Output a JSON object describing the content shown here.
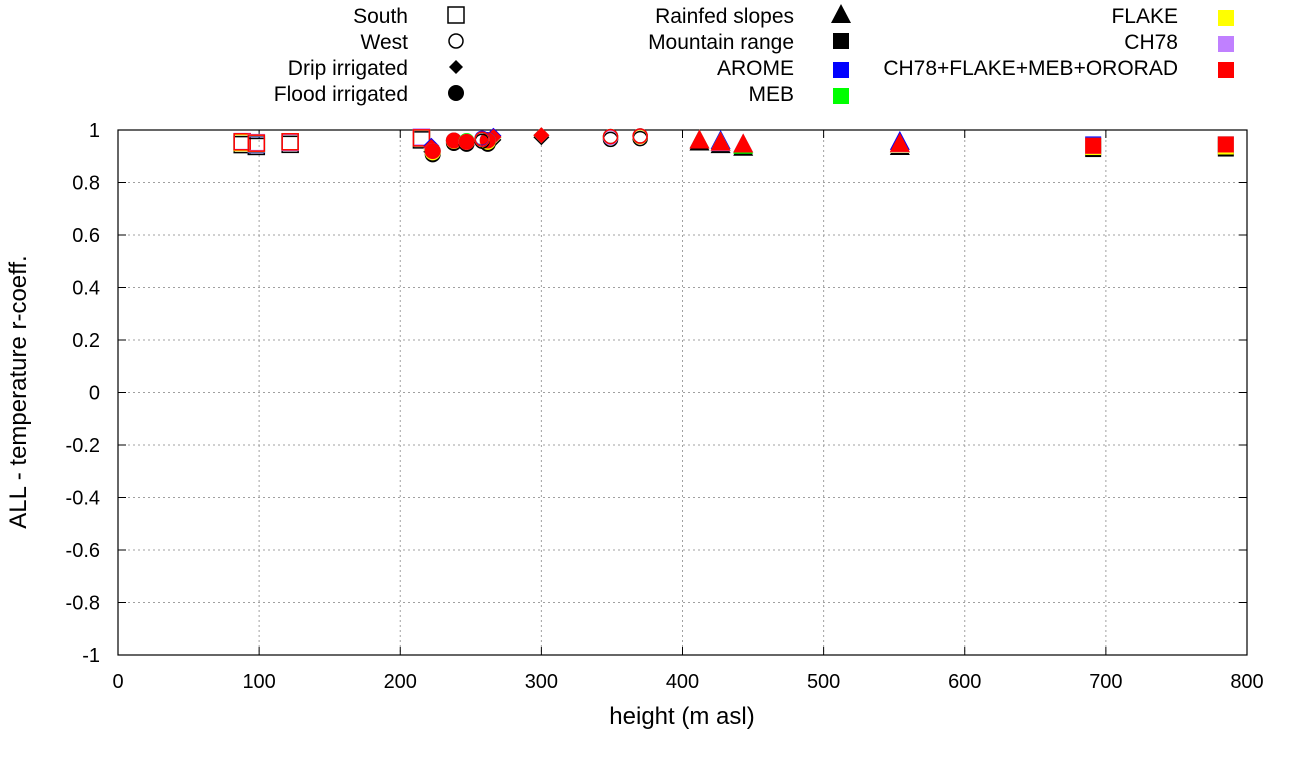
{
  "chart_data": {
    "type": "scatter",
    "xlabel": "height (m asl)",
    "ylabel": "ALL - temperature r-coeff.",
    "xlim": [
      0,
      800
    ],
    "ylim": [
      -1,
      1
    ],
    "xticks": [
      "0",
      "100",
      "200",
      "300",
      "400",
      "500",
      "600",
      "700",
      "800"
    ],
    "yticks": [
      "1",
      "0.8",
      "0.6",
      "0.4",
      "0.2",
      "0",
      "-0.2",
      "-0.4",
      "-0.6",
      "-0.8",
      "-1"
    ],
    "grid": true,
    "legend_placement": "top",
    "site_types": [
      {
        "name": "South",
        "shape": "open-square"
      },
      {
        "name": "West",
        "shape": "open-circle"
      },
      {
        "name": "Drip irrigated",
        "shape": "diamond"
      },
      {
        "name": "Flood irrigated",
        "shape": "circle"
      },
      {
        "name": "Rainfed slopes",
        "shape": "triangle"
      },
      {
        "name": "Mountain range",
        "shape": "square"
      }
    ],
    "models": [
      {
        "name": "AROME",
        "color": "#0000ff"
      },
      {
        "name": "MEB",
        "color": "#00ff00"
      },
      {
        "name": "FLAKE",
        "color": "#ffff00"
      },
      {
        "name": "CH78",
        "color": "#c080ff"
      },
      {
        "name": "CH78+FLAKE+MEB+ORORAD",
        "color": "#ff0000"
      }
    ],
    "points": [
      {
        "type": "South",
        "x": 88,
        "r": [
          0.955,
          0.953,
          0.952,
          0.956,
          0.955
        ]
      },
      {
        "type": "South",
        "x": 98,
        "r": [
          0.945,
          0.95,
          0.948,
          0.952,
          0.95
        ]
      },
      {
        "type": "South",
        "x": 122,
        "r": [
          0.955,
          0.955,
          0.955,
          0.953,
          0.955
        ]
      },
      {
        "type": "South",
        "x": 215,
        "r": [
          0.97,
          0.97,
          0.97,
          0.973,
          0.97
        ]
      },
      {
        "type": "Drip irrigated",
        "x": 222,
        "r": [
          0.94,
          0.93,
          0.925,
          0.93,
          0.935
        ]
      },
      {
        "type": "Drip irrigated",
        "x": 266,
        "r": [
          0.978,
          0.972,
          0.97,
          0.972,
          0.974
        ]
      },
      {
        "type": "Drip irrigated",
        "x": 300,
        "r": [
          0.98,
          0.98,
          0.98,
          0.98,
          0.98
        ]
      },
      {
        "type": "Flood irrigated",
        "x": 223,
        "r": [
          0.92,
          0.92,
          0.915,
          0.92,
          0.92
        ]
      },
      {
        "type": "Flood irrigated",
        "x": 238,
        "r": [
          0.96,
          0.96,
          0.958,
          0.96,
          0.96
        ]
      },
      {
        "type": "Flood irrigated",
        "x": 247,
        "r": [
          0.956,
          0.958,
          0.955,
          0.955,
          0.955
        ]
      },
      {
        "type": "Flood irrigated",
        "x": 262,
        "r": [
          0.962,
          0.96,
          0.955,
          0.96,
          0.96
        ]
      },
      {
        "type": "West",
        "x": 258,
        "r": [
          0.968,
          0.965,
          0.965,
          0.965,
          0.965
        ]
      },
      {
        "type": "West",
        "x": 349,
        "r": [
          0.975,
          0.975,
          0.973,
          0.972,
          0.975
        ]
      },
      {
        "type": "West",
        "x": 370,
        "r": [
          0.977,
          0.977,
          0.975,
          0.977,
          0.977
        ]
      },
      {
        "type": "Rainfed slopes",
        "x": 412,
        "r": [
          0.96,
          0.96,
          0.96,
          0.96,
          0.96
        ]
      },
      {
        "type": "Rainfed slopes",
        "x": 427,
        "r": [
          0.958,
          0.952,
          0.952,
          0.95,
          0.952
        ]
      },
      {
        "type": "Rainfed slopes",
        "x": 443,
        "r": [
          0.945,
          0.94,
          0.945,
          0.945,
          0.945
        ]
      },
      {
        "type": "Rainfed slopes",
        "x": 554,
        "r": [
          0.955,
          0.945,
          0.943,
          0.945,
          0.947
        ]
      },
      {
        "type": "Mountain range",
        "x": 691,
        "r": [
          0.945,
          0.94,
          0.935,
          0.94,
          0.94
        ]
      },
      {
        "type": "Mountain range",
        "x": 785,
        "r": [
          0.945,
          0.945,
          0.937,
          0.945,
          0.945
        ]
      }
    ]
  }
}
